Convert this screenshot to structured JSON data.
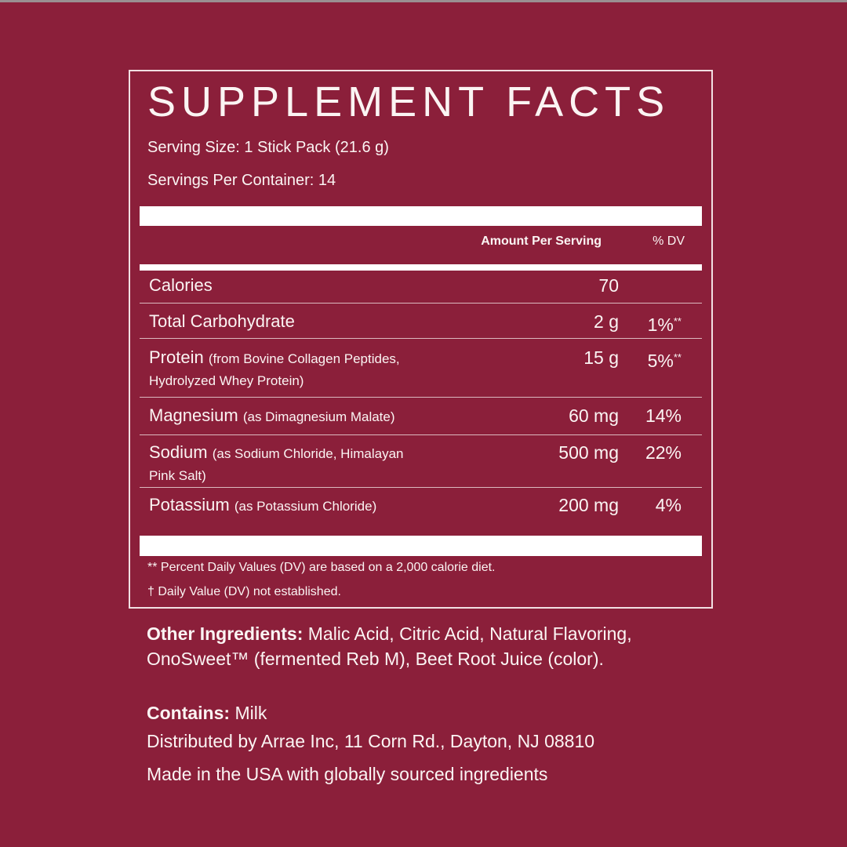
{
  "title": "SUPPLEMENT FACTS",
  "serving_size": "Serving Size: 1 Stick Pack (21.6 g)",
  "servings_per_container": "Servings Per Container: 14",
  "header": {
    "amount": "Amount Per Serving",
    "dv": "% DV"
  },
  "rows": [
    {
      "name": "Calories",
      "detail": "",
      "amount": "70",
      "dv": "",
      "dv_mark": ""
    },
    {
      "name": "Total Carbohydrate",
      "detail": "",
      "amount": "2 g",
      "dv": "1%",
      "dv_mark": "**"
    },
    {
      "name": "Protein",
      "detail": "(from Bovine Collagen Peptides,",
      "detail2": "Hydrolyzed Whey Protein)",
      "amount": "15 g",
      "dv": "5%",
      "dv_mark": "**"
    },
    {
      "name": "Magnesium",
      "detail": "(as Dimagnesium Malate)",
      "amount": "60 mg",
      "dv": "14%",
      "dv_mark": ""
    },
    {
      "name": "Sodium",
      "detail": "(as Sodium Chloride, Himalayan",
      "detail2": "Pink Salt)",
      "amount": "500 mg",
      "dv": "22%",
      "dv_mark": ""
    },
    {
      "name": "Potassium",
      "detail": "(as Potassium Chloride)",
      "amount": "200 mg",
      "dv": "4%",
      "dv_mark": ""
    }
  ],
  "footnotes": [
    "** Percent Daily Values (DV) are based on a 2,000 calorie diet.",
    "† Daily Value (DV) not established."
  ],
  "other_ingredients": {
    "label": "Other Ingredients:",
    "text": " Malic Acid, Citric Acid, Natural Flavoring, OnoSweet™ (fermented Reb M), Beet Root Juice (color)."
  },
  "contains": {
    "label": "Contains:",
    "text": " Milk"
  },
  "distributed": "Distributed by Arrae Inc, 11 Corn Rd., Dayton, NJ 08810",
  "made_in": "Made in the USA with globally sourced ingredients",
  "colors": {
    "background": "#8b1f3a",
    "text": "#fbf4f3"
  }
}
